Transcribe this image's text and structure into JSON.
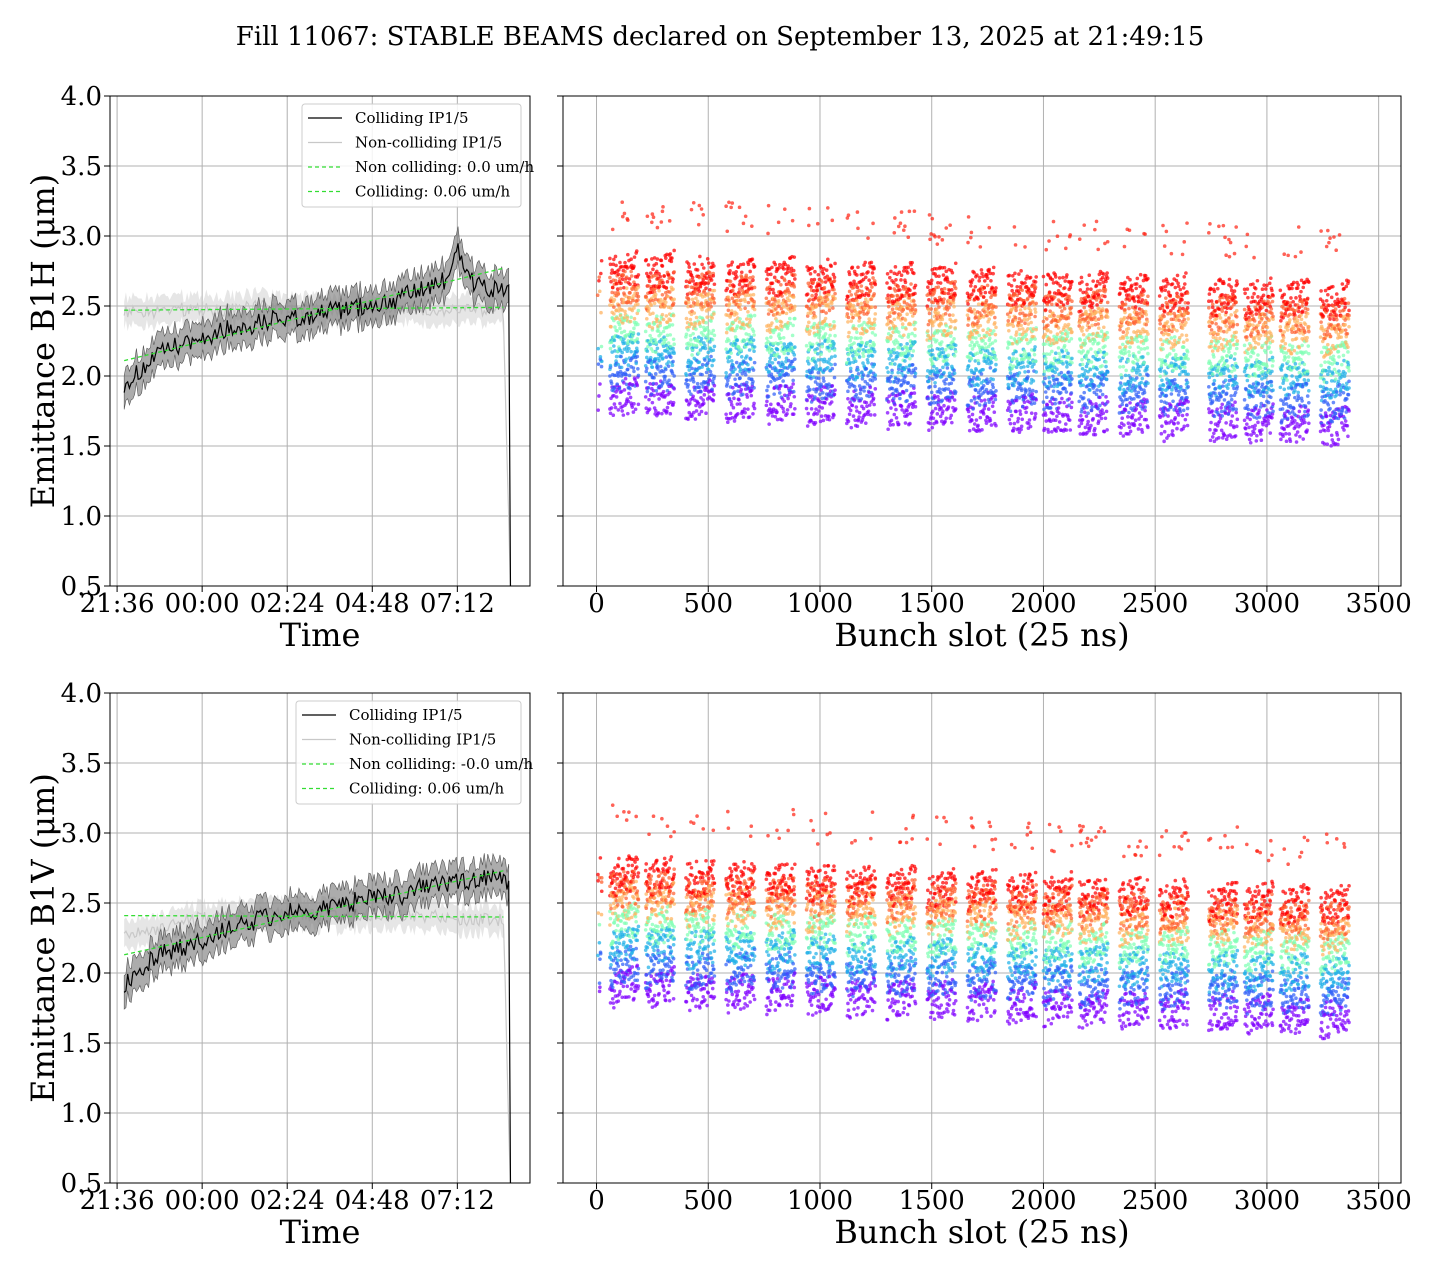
{
  "figure": {
    "title": "Fill 11067: STABLE BEAMS declared on September 13, 2025 at 21:49:15"
  },
  "colors": {
    "colliding": "#000000",
    "colliding_band": "#808080",
    "noncolliding": "#c8c8c8",
    "fit": "#33dd33",
    "grid": "#b0b0b0",
    "rainbow": [
      "#8000ff",
      "#3060f8",
      "#1fb0e8",
      "#80ffb4",
      "#ffb360",
      "#ff3020",
      "#ff0000"
    ]
  },
  "chart_data": [
    {
      "id": "b1h-time",
      "type": "line",
      "title": "",
      "xlabel": "Time",
      "ylabel": "Emittance B1H (μm)",
      "ylim": [
        0.5,
        4.0
      ],
      "xlim_hours": [
        -0.2,
        11.65
      ],
      "grid": true,
      "legend_placement": "upper-right",
      "yticks": [
        "0.5",
        "1.0",
        "1.5",
        "2.0",
        "2.5",
        "3.0",
        "3.5",
        "4.0"
      ],
      "xticks": [
        {
          "label": "21:36",
          "hour": 0
        },
        {
          "label": "00:00",
          "hour": 2.4
        },
        {
          "label": "02:24",
          "hour": 4.8
        },
        {
          "label": "04:48",
          "hour": 7.2
        },
        {
          "label": "07:12",
          "hour": 9.6
        }
      ],
      "legend": [
        "Colliding IP1/5",
        "Non-colliding IP1/5",
        "Non colliding: 0.0 um/h",
        "Colliding: 0.06 um/h"
      ],
      "series": [
        {
          "name": "Colliding IP1/5",
          "x_hours": [
            0.2,
            0.6,
            1.0,
            1.5,
            2.0,
            2.5,
            3.0,
            3.5,
            4.0,
            4.5,
            5.0,
            5.5,
            6.0,
            6.5,
            7.0,
            7.5,
            8.0,
            8.5,
            9.0,
            9.3,
            9.6,
            10.0,
            10.5,
            10.9,
            11.05,
            11.1
          ],
          "y": [
            1.95,
            2.02,
            2.12,
            2.2,
            2.23,
            2.28,
            2.33,
            2.35,
            2.38,
            2.42,
            2.4,
            2.44,
            2.46,
            2.48,
            2.5,
            2.52,
            2.56,
            2.6,
            2.65,
            2.7,
            2.9,
            2.68,
            2.62,
            2.6,
            2.58,
            0.45
          ]
        },
        {
          "name": "Non-colliding IP1/5",
          "x_hours": [
            0.2,
            1.0,
            2.0,
            3.0,
            4.0,
            5.0,
            6.0,
            7.0,
            8.0,
            9.0,
            10.0,
            10.9,
            11.1
          ],
          "y": [
            2.45,
            2.46,
            2.48,
            2.47,
            2.49,
            2.47,
            2.48,
            2.49,
            2.48,
            2.47,
            2.48,
            2.46,
            0.45
          ]
        },
        {
          "name": "Non colliding: 0.0 um/h",
          "x_hours": [
            0.2,
            10.9
          ],
          "y": [
            2.47,
            2.49
          ]
        },
        {
          "name": "Colliding: 0.06 um/h",
          "x_hours": [
            0.2,
            10.9
          ],
          "y": [
            2.11,
            2.77
          ]
        }
      ]
    },
    {
      "id": "b1h-bunch",
      "type": "scatter",
      "title": "",
      "xlabel": "Bunch slot (25 ns)",
      "ylabel": "",
      "ylim": [
        0.5,
        4.0
      ],
      "xlim": [
        -150,
        3600
      ],
      "grid": true,
      "xticks": [
        "0",
        "500",
        "1000",
        "1500",
        "2000",
        "2500",
        "3000",
        "3500"
      ],
      "train_starts": [
        60,
        220,
        400,
        580,
        760,
        940,
        1120,
        1300,
        1480,
        1660,
        1840,
        2000,
        2160,
        2340,
        2520,
        2740,
        2900,
        3060,
        3240
      ],
      "train_length": 130,
      "levels": [
        {
          "value": 1.85,
          "color": "#8000ff"
        },
        {
          "value": 2.02,
          "color": "#3060f8"
        },
        {
          "value": 2.18,
          "color": "#1fb0e8"
        },
        {
          "value": 2.32,
          "color": "#80ffb4"
        },
        {
          "value": 2.5,
          "color": "#ffb360"
        },
        {
          "value": 2.62,
          "color": "#ff6030"
        },
        {
          "value": 2.75,
          "color": "#ff0000"
        }
      ]
    },
    {
      "id": "b1v-time",
      "type": "line",
      "title": "",
      "xlabel": "Time",
      "ylabel": "Emittance B1V (μm)",
      "ylim": [
        0.5,
        4.0
      ],
      "xlim_hours": [
        -0.2,
        11.65
      ],
      "grid": true,
      "legend_placement": "upper-right",
      "yticks": [
        "0.5",
        "1.0",
        "1.5",
        "2.0",
        "2.5",
        "3.0",
        "3.5",
        "4.0"
      ],
      "xticks": [
        {
          "label": "21:36",
          "hour": 0
        },
        {
          "label": "00:00",
          "hour": 2.4
        },
        {
          "label": "02:24",
          "hour": 4.8
        },
        {
          "label": "04:48",
          "hour": 7.2
        },
        {
          "label": "07:12",
          "hour": 9.6
        }
      ],
      "legend": [
        "Colliding IP1/5",
        "Non-colliding IP1/5",
        "Non colliding: -0.0 um/h",
        "Colliding: 0.06 um/h"
      ],
      "series": [
        {
          "name": "Colliding IP1/5",
          "x_hours": [
            0.2,
            0.6,
            1.0,
            1.5,
            2.0,
            2.5,
            3.0,
            3.5,
            4.0,
            4.5,
            5.0,
            5.5,
            6.0,
            6.5,
            7.0,
            7.5,
            8.0,
            8.5,
            9.0,
            9.5,
            10.0,
            10.5,
            10.9,
            11.05,
            11.1
          ],
          "y": [
            1.93,
            2.02,
            2.1,
            2.16,
            2.2,
            2.25,
            2.3,
            2.34,
            2.38,
            2.42,
            2.44,
            2.42,
            2.47,
            2.5,
            2.52,
            2.55,
            2.55,
            2.6,
            2.63,
            2.65,
            2.66,
            2.68,
            2.7,
            2.62,
            0.45
          ]
        },
        {
          "name": "Non-colliding IP1/5",
          "x_hours": [
            0.2,
            1.0,
            2.0,
            3.0,
            4.0,
            5.0,
            6.0,
            7.0,
            8.0,
            9.0,
            10.0,
            10.9,
            11.1
          ],
          "y": [
            2.25,
            2.3,
            2.38,
            2.4,
            2.42,
            2.42,
            2.4,
            2.42,
            2.41,
            2.4,
            2.38,
            2.38,
            0.45
          ]
        },
        {
          "name": "Non colliding: -0.0 um/h",
          "x_hours": [
            0.2,
            10.9
          ],
          "y": [
            2.41,
            2.4
          ]
        },
        {
          "name": "Colliding: 0.06 um/h",
          "x_hours": [
            0.2,
            10.9
          ],
          "y": [
            2.13,
            2.73
          ]
        }
      ]
    },
    {
      "id": "b1v-bunch",
      "type": "scatter",
      "title": "",
      "xlabel": "Bunch slot (25 ns)",
      "ylabel": "",
      "ylim": [
        0.5,
        4.0
      ],
      "xlim": [
        -150,
        3600
      ],
      "grid": true,
      "xticks": [
        "0",
        "500",
        "1000",
        "1500",
        "2000",
        "2500",
        "3000",
        "3500"
      ],
      "train_starts": [
        60,
        220,
        400,
        580,
        760,
        940,
        1120,
        1300,
        1480,
        1660,
        1840,
        2000,
        2160,
        2340,
        2520,
        2740,
        2900,
        3060,
        3240
      ],
      "train_length": 130,
      "levels": [
        {
          "value": 1.9,
          "color": "#8000ff"
        },
        {
          "value": 2.05,
          "color": "#3060f8"
        },
        {
          "value": 2.2,
          "color": "#1fb0e8"
        },
        {
          "value": 2.35,
          "color": "#80ffb4"
        },
        {
          "value": 2.5,
          "color": "#ffb360"
        },
        {
          "value": 2.6,
          "color": "#ff6030"
        },
        {
          "value": 2.7,
          "color": "#ff0000"
        }
      ]
    }
  ]
}
